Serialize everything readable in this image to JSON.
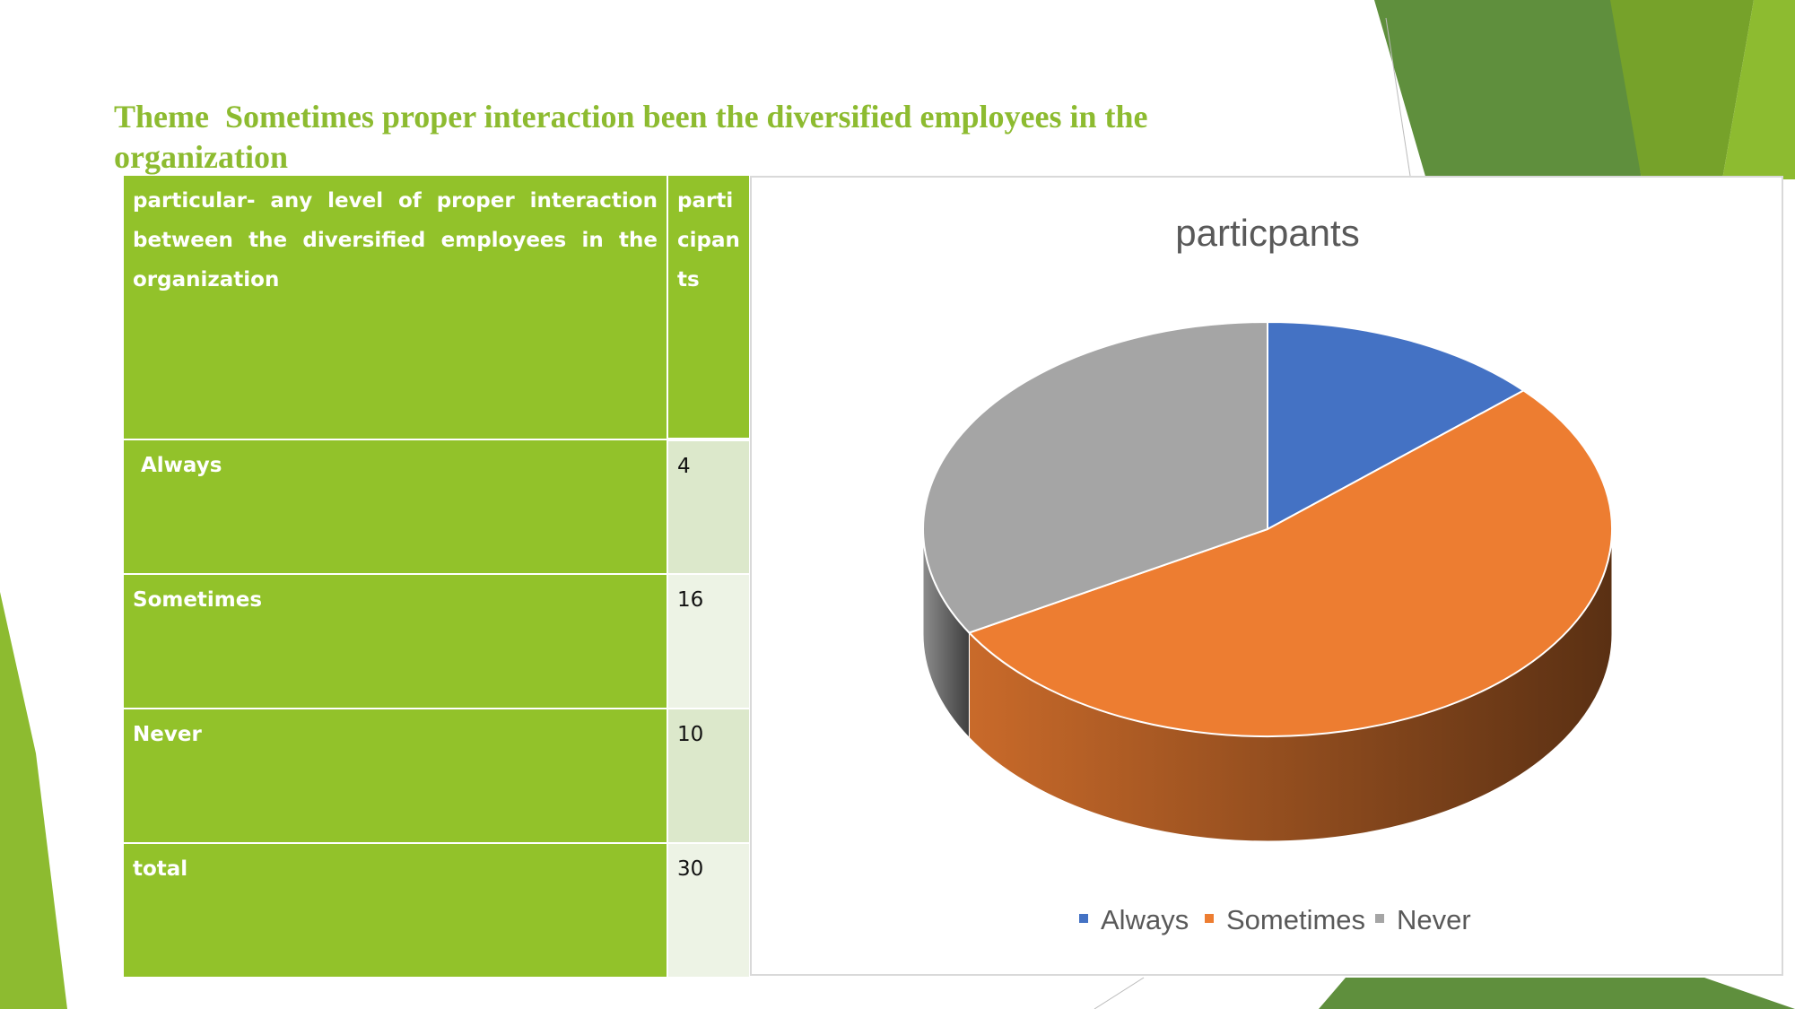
{
  "title": "Theme  Sometimes proper interaction been the diversified employees in the organization",
  "table": {
    "header": [
      "particular- any level of proper interaction between the diversified employees in the organization",
      "participants"
    ],
    "rows": [
      [
        "Always",
        "4"
      ],
      [
        "Sometimes",
        "16"
      ],
      [
        "Never",
        "10"
      ],
      [
        "total",
        "30"
      ]
    ]
  },
  "chart_data": {
    "type": "pie",
    "title": "particpants",
    "categories": [
      "Always",
      "Sometimes",
      "Never"
    ],
    "values": [
      4,
      16,
      10
    ],
    "colors": [
      "#4472c4",
      "#ed7d31",
      "#a5a5a5"
    ],
    "legend": "bottom"
  }
}
